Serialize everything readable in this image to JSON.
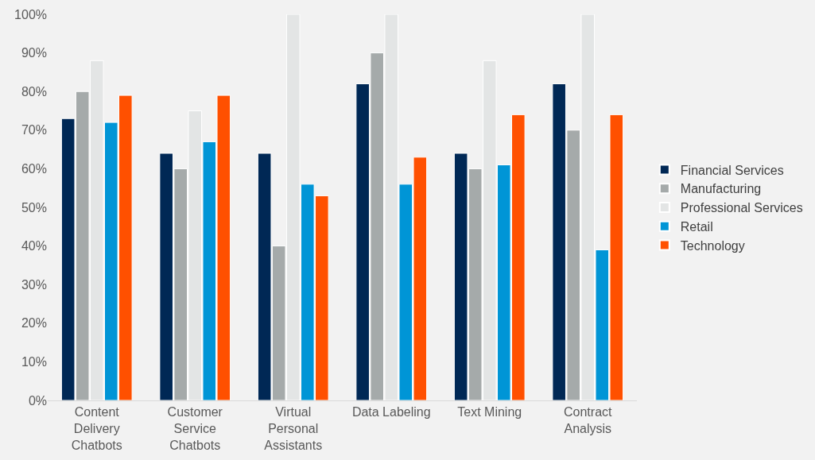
{
  "chart_data": {
    "type": "bar",
    "categories": [
      "Content Delivery Chatbots",
      "Customer Service Chatbots",
      "Virtual Personal Assistants",
      "Data Labeling",
      "Text Mining",
      "Contract Analysis"
    ],
    "series": [
      {
        "name": "Financial Services",
        "color": "#002855",
        "values": [
          73,
          64,
          64,
          82,
          64,
          82
        ]
      },
      {
        "name": "Manufacturing",
        "color": "#a5aaaa",
        "values": [
          80,
          60,
          40,
          90,
          60,
          70
        ]
      },
      {
        "name": "Professional Services",
        "color": "#e3e5e5",
        "values": [
          88,
          75,
          100,
          100,
          88,
          100
        ]
      },
      {
        "name": "Retail",
        "color": "#0095d6",
        "values": [
          72,
          67,
          56,
          56,
          61,
          39
        ]
      },
      {
        "name": "Technology",
        "color": "#ff5000",
        "values": [
          79,
          79,
          53,
          63,
          74,
          74
        ]
      }
    ],
    "ylim": [
      0,
      100
    ],
    "yticks": [
      {
        "value": 0,
        "label": "0%"
      },
      {
        "value": 10,
        "label": "10%"
      },
      {
        "value": 20,
        "label": "20%"
      },
      {
        "value": 30,
        "label": "30%"
      },
      {
        "value": 40,
        "label": "40%"
      },
      {
        "value": 50,
        "label": "50%"
      },
      {
        "value": 60,
        "label": "60%"
      },
      {
        "value": 70,
        "label": "70%"
      },
      {
        "value": 80,
        "label": "80%"
      },
      {
        "value": 90,
        "label": "90%"
      },
      {
        "value": 100,
        "label": "100%"
      }
    ],
    "grid": false,
    "legend": "right"
  }
}
